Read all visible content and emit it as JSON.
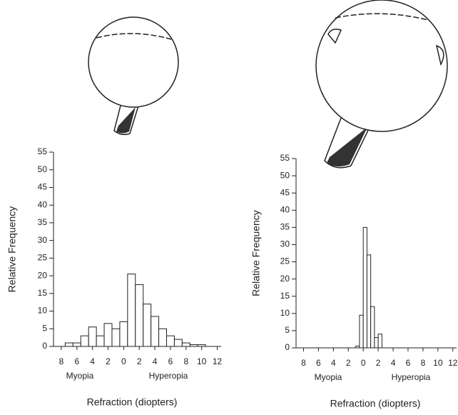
{
  "chart_data": [
    {
      "type": "histogram",
      "color": "#ffffff",
      "bins": [
        -7.5,
        -6.5,
        -5.5,
        -4.5,
        -3.5,
        -2.5,
        -1.5,
        -0.5,
        0.5,
        1.5,
        2.5,
        3.5,
        4.5,
        5.5,
        6.5,
        7.5,
        8.5,
        9.5,
        10.5
      ],
      "values": [
        1,
        1,
        3,
        5.5,
        3,
        6.5,
        5,
        7,
        20.5,
        17.5,
        12,
        8.5,
        5,
        3,
        2,
        1,
        0.5,
        0.5
      ],
      "xlim": [
        -9,
        12.5
      ],
      "xticks": [
        {
          "value": -8,
          "label": "8"
        },
        {
          "value": -6,
          "label": "6"
        },
        {
          "value": -4,
          "label": "4"
        },
        {
          "value": -2,
          "label": "2"
        },
        0,
        2,
        4,
        6,
        8,
        10,
        12
      ],
      "ylim": [
        0,
        55
      ],
      "yticks": [
        0,
        5,
        10,
        15,
        20,
        25,
        30,
        35,
        40,
        45,
        50,
        55
      ],
      "y_label": "Relative Frequency",
      "x_label": "Refraction (diopters)",
      "annotations": [
        "Myopia",
        "Hyperopia"
      ]
    },
    {
      "type": "histogram",
      "color": "#ffffff",
      "bins": [
        -1,
        -0.5,
        0,
        0.5,
        1,
        1.5,
        2,
        2.5
      ],
      "values": [
        0.5,
        9.5,
        35,
        27,
        12,
        3,
        4
      ],
      "xlim": [
        -9,
        12.5
      ],
      "xticks": [
        {
          "value": -8,
          "label": "8"
        },
        {
          "value": -6,
          "label": "6"
        },
        {
          "value": -4,
          "label": "4"
        },
        {
          "value": -2,
          "label": "2"
        },
        0,
        2,
        4,
        6,
        8,
        10,
        12
      ],
      "ylim": [
        0,
        55
      ],
      "yticks": [
        0,
        5,
        10,
        15,
        20,
        25,
        30,
        35,
        40,
        45,
        50,
        55
      ],
      "y_label": "Relative Frequency",
      "x_label": "Refraction (diopters)",
      "annotations": [
        "Myopia",
        "Hyperopia"
      ]
    }
  ]
}
